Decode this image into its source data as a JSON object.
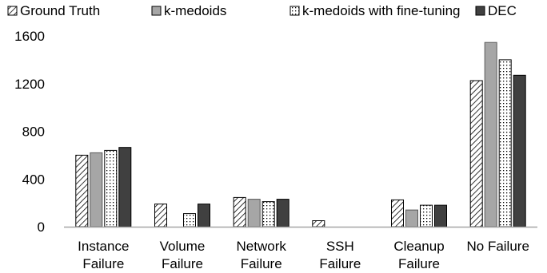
{
  "chart_data": {
    "type": "bar",
    "title": "",
    "xlabel": "",
    "ylabel": "",
    "categories": [
      [
        "Instance",
        "Failure"
      ],
      [
        "Volume",
        "Failure"
      ],
      [
        "Network",
        "Failure"
      ],
      [
        "SSH",
        "Failure"
      ],
      [
        "Cleanup",
        "Failure"
      ],
      [
        "No Failure"
      ]
    ],
    "ylim": [
      0,
      1600
    ],
    "yticks": [
      "0",
      "400",
      "800",
      "1200",
      "1600"
    ],
    "legend_position": "top",
    "grid": false,
    "series": [
      {
        "name": "Ground Truth",
        "pattern": "diagonal-hatch",
        "color": "#000000",
        "values": [
          600,
          190,
          245,
          50,
          225,
          1225
        ]
      },
      {
        "name": "k-medoids",
        "pattern": "solid",
        "color": "#a6a6a6",
        "values": [
          620,
          0,
          230,
          0,
          140,
          1545
        ]
      },
      {
        "name": "k-medoids with fine-tuning",
        "pattern": "dotted",
        "color": "#ffffff",
        "values": [
          640,
          110,
          210,
          0,
          180,
          1400
        ]
      },
      {
        "name": "DEC",
        "pattern": "solid",
        "color": "#404040",
        "values": [
          665,
          190,
          230,
          0,
          180,
          1270
        ]
      }
    ]
  }
}
